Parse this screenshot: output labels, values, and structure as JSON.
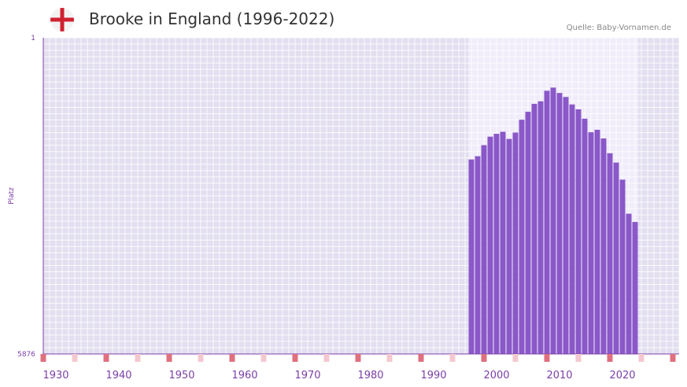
{
  "header": {
    "title": "Brooke in England (1996-2022)",
    "source": "Quelle: Baby-Vornamen.de",
    "flag_icon": "england-flag-icon"
  },
  "colors": {
    "plot_bg": "#e3dff0",
    "highlight_bg": "#f0ecfa",
    "bar": "#8a58c8",
    "grid": "#ffffff",
    "axis_text": "#7b3fa8",
    "marker_strong": "#e0707f",
    "marker_light": "#f4c8d0"
  },
  "chart_data": {
    "type": "bar",
    "title": "Brooke in England (1996-2022)",
    "xlabel": "",
    "ylabel": "Platz",
    "y_inverted": true,
    "ylim": [
      1,
      5876
    ],
    "y_ticks": [
      "1",
      "5876"
    ],
    "xlim": [
      1928,
      2029
    ],
    "x_ticks": [
      "1930",
      "1940",
      "1950",
      "1960",
      "1970",
      "1980",
      "1990",
      "2000",
      "2010",
      "2020"
    ],
    "highlight_range": [
      1996,
      2022
    ],
    "x": [
      1996,
      1997,
      1998,
      1999,
      2000,
      2001,
      2002,
      2003,
      2004,
      2005,
      2006,
      2007,
      2008,
      2009,
      2010,
      2011,
      2012,
      2013,
      2014,
      2015,
      2016,
      2017,
      2018,
      2019,
      2020,
      2021,
      2022
    ],
    "values": [
      2262,
      2202,
      1996,
      1838,
      1786,
      1748,
      1880,
      1762,
      1524,
      1376,
      1229,
      1181,
      986,
      927,
      1027,
      1101,
      1240,
      1331,
      1505,
      1756,
      1711,
      1872,
      2147,
      2320,
      2637,
      3270,
      3423
    ]
  }
}
